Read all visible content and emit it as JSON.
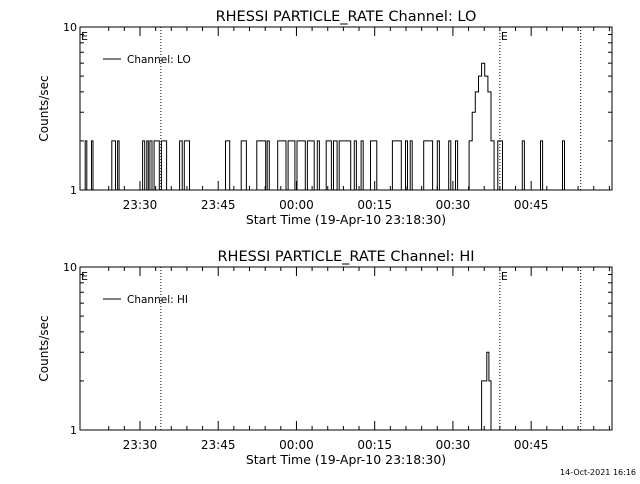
{
  "chart_data": [
    {
      "type": "line",
      "title": "RHESSI PARTICLE_RATE Channel: LO",
      "xlabel": "Start Time (19-Apr-10 23:18:30)",
      "ylabel": "Counts/sec",
      "y_scale": "log",
      "ylim": [
        1,
        10
      ],
      "y_ticklabels": [
        "1",
        "10"
      ],
      "x_unit": "minutes after 23:18:30",
      "xlim": [
        0,
        102
      ],
      "x_ticks": [
        11.5,
        26.5,
        41.5,
        56.5,
        71.5,
        86.5
      ],
      "x_ticklabels": [
        "23:30",
        "23:45",
        "00:00",
        "00:15",
        "00:30",
        "00:45"
      ],
      "grid": false,
      "legend": {
        "position": "top-left",
        "entries": [
          "Channel: LO"
        ]
      },
      "markers": [
        {
          "label": "E",
          "x": 0,
          "line": false
        },
        {
          "label": "",
          "x": 15.5,
          "line": true
        },
        {
          "label": "E",
          "x": 80.5,
          "line": true
        },
        {
          "label": "",
          "x": 96,
          "line": true
        }
      ],
      "series": [
        {
          "name": "Channel: LO",
          "x": [
            0,
            0.6,
            1.0,
            1.3,
            1.8,
            2.2,
            2.5,
            5.8,
            6.1,
            6.5,
            6.8,
            7.2,
            7.5,
            11.6,
            12.0,
            12.4,
            12.8,
            13.1,
            13.4,
            13.8,
            14.2,
            15.2,
            15.6,
            16.2,
            16.6,
            18.7,
            19.1,
            19.6,
            20.0,
            20.6,
            21.0,
            27.5,
            27.9,
            28.3,
            28.7,
            30.5,
            30.9,
            31.5,
            31.9,
            33.5,
            33.9,
            35.2,
            35.6,
            35.9,
            36.3,
            37.5,
            37.9,
            39.5,
            39.9,
            41.2,
            41.6,
            43.2,
            43.6,
            44.5,
            44.9,
            45.5,
            45.9,
            46.8,
            47.2,
            48.2,
            48.6,
            49.3,
            49.7,
            51.5,
            51.9,
            52.6,
            53.0,
            53.9,
            54.3,
            55.3,
            55.7,
            56.1,
            56.5,
            56.9,
            59.5,
            59.9,
            61.2,
            61.6,
            62.4,
            62.8,
            63.3,
            63.7,
            65.5,
            65.9,
            67.2,
            67.6,
            68.5,
            68.9,
            70.7,
            71.1,
            72.0,
            72.4,
            73.5,
            74.0,
            74.6,
            75.2,
            75.8,
            76.4,
            77.0,
            77.6,
            78.2,
            78.8,
            79.4,
            80.1,
            80.5,
            81.0,
            81.4,
            84.8,
            85.2,
            88.3,
            88.7,
            92.5,
            92.9,
            102
          ],
          "y": [
            1,
            1,
            2,
            1,
            1,
            2,
            1,
            1,
            2,
            2,
            1,
            2,
            1,
            1,
            2,
            1,
            2,
            1,
            2,
            1,
            2,
            1,
            2,
            2,
            1,
            1,
            2,
            1,
            2,
            2,
            1,
            1,
            2,
            2,
            1,
            1,
            2,
            2,
            1,
            1,
            2,
            2,
            1,
            2,
            1,
            1,
            2,
            1,
            2,
            1,
            2,
            1,
            2,
            2,
            1,
            2,
            1,
            1,
            2,
            1,
            2,
            1,
            2,
            2,
            1,
            2,
            1,
            2,
            1,
            1,
            2,
            2,
            2,
            1,
            1,
            2,
            2,
            1,
            2,
            1,
            2,
            1,
            1,
            2,
            2,
            1,
            2,
            1,
            2,
            1,
            2,
            1,
            1,
            1,
            2,
            3,
            4,
            5,
            6,
            5,
            4,
            2,
            1,
            2,
            2,
            1,
            1,
            2,
            1,
            2,
            1,
            2,
            1,
            1
          ]
        }
      ]
    },
    {
      "type": "line",
      "title": "RHESSI PARTICLE_RATE Channel: HI",
      "xlabel": "Start Time (19-Apr-10 23:18:30)",
      "ylabel": "Counts/sec",
      "y_scale": "log",
      "ylim": [
        1,
        10
      ],
      "y_ticklabels": [
        "1",
        "10"
      ],
      "x_unit": "minutes after 23:18:30",
      "xlim": [
        0,
        102
      ],
      "x_ticks": [
        11.5,
        26.5,
        41.5,
        56.5,
        71.5,
        86.5
      ],
      "x_ticklabels": [
        "23:30",
        "23:45",
        "00:00",
        "00:15",
        "00:30",
        "00:45"
      ],
      "grid": false,
      "legend": {
        "position": "top-left",
        "entries": [
          "Channel: HI"
        ]
      },
      "markers": [
        {
          "label": "E",
          "x": 0,
          "line": false
        },
        {
          "label": "",
          "x": 15.5,
          "line": true
        },
        {
          "label": "E",
          "x": 80.5,
          "line": true
        },
        {
          "label": "",
          "x": 96,
          "line": true
        }
      ],
      "series": [
        {
          "name": "Channel: HI",
          "x": [
            76.5,
            77.0,
            77.5,
            78.0,
            78.4,
            78.8,
            79.3
          ],
          "y": [
            1,
            2,
            2,
            3,
            2,
            1,
            1
          ]
        }
      ]
    }
  ],
  "footer_timestamp": "14-Oct-2021 16:16"
}
